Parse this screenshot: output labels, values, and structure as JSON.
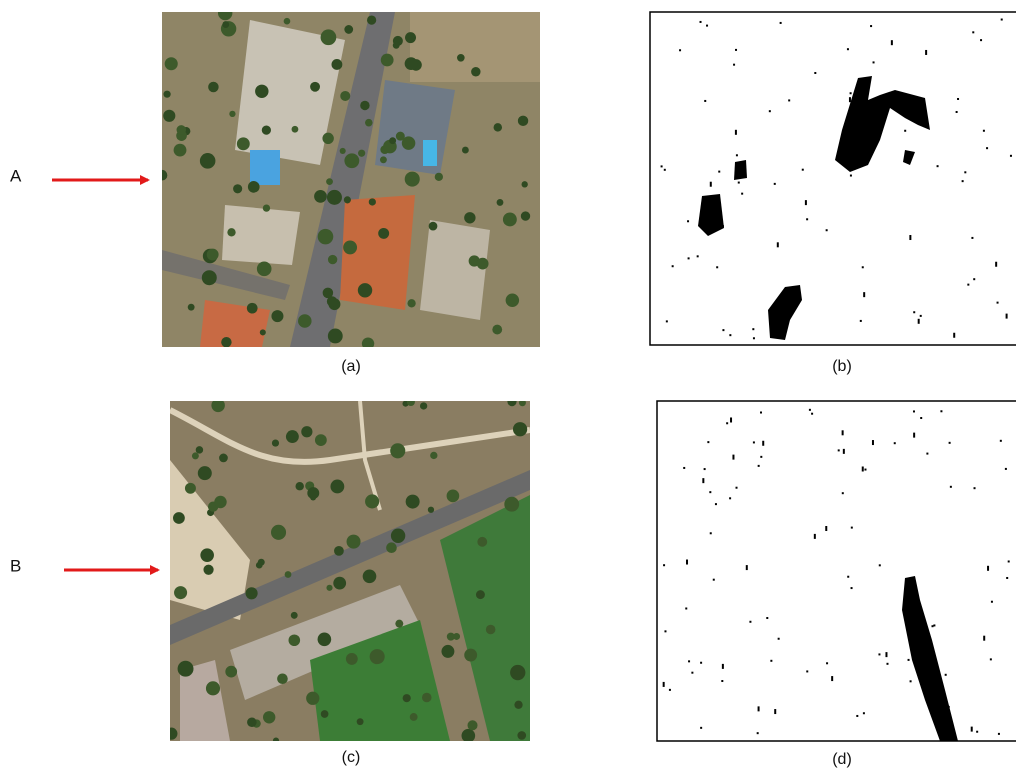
{
  "rows": [
    {
      "label": "A",
      "captions": [
        "(a)",
        "(b)"
      ]
    },
    {
      "label": "B",
      "captions": [
        "(c)",
        "(d)"
      ]
    }
  ]
}
